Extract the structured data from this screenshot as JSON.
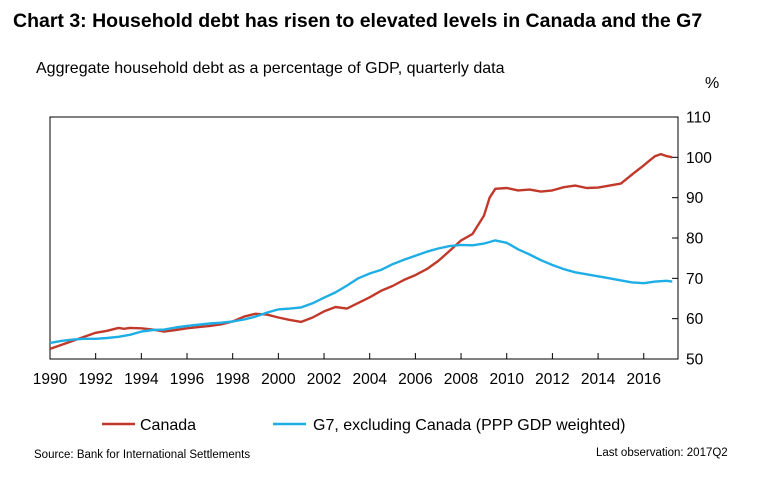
{
  "chart_data": {
    "type": "line",
    "title": "Chart 3: Household debt has risen to elevated levels in Canada and the G7",
    "subtitle": "Aggregate household debt as a percentage of GDP, quarterly data",
    "ylabel": "%",
    "ylim": [
      50,
      110
    ],
    "xlim": [
      1990,
      2017.5
    ],
    "y_ticks": [
      "50",
      "60",
      "70",
      "80",
      "90",
      "100",
      "110"
    ],
    "x_ticks": [
      "1990",
      "1992",
      "1994",
      "1996",
      "1998",
      "2000",
      "2002",
      "2004",
      "2006",
      "2008",
      "2010",
      "2012",
      "2014",
      "2016"
    ],
    "grid": false,
    "legend": "bottom",
    "series": [
      {
        "name": "Canada",
        "color": "#c0392b",
        "x": [
          1990,
          1990.5,
          1991,
          1991.5,
          1992,
          1992.5,
          1993,
          1993.25,
          1993.5,
          1994,
          1994.5,
          1995,
          1995.5,
          1996,
          1996.5,
          1997,
          1997.5,
          1998,
          1998.5,
          1999,
          1999.5,
          2000,
          2000.5,
          2001,
          2001.5,
          2002,
          2002.5,
          2003,
          2003.5,
          2004,
          2004.5,
          2005,
          2005.5,
          2006,
          2006.5,
          2007,
          2007.5,
          2008,
          2008.5,
          2009,
          2009.25,
          2009.5,
          2010,
          2010.5,
          2011,
          2011.5,
          2012,
          2012.5,
          2013,
          2013.5,
          2014,
          2014.5,
          2015,
          2015.5,
          2016,
          2016.25,
          2016.5,
          2016.75,
          2017,
          2017.25
        ],
        "values": [
          52.5,
          53.5,
          54.5,
          55.5,
          56.5,
          57.0,
          57.7,
          57.5,
          57.7,
          57.6,
          57.3,
          56.8,
          57.2,
          57.6,
          57.9,
          58.2,
          58.6,
          59.3,
          60.5,
          61.2,
          61.0,
          60.3,
          59.7,
          59.2,
          60.3,
          61.8,
          62.9,
          62.5,
          63.9,
          65.3,
          66.9,
          68.1,
          69.6,
          70.8,
          72.3,
          74.3,
          76.8,
          79.4,
          81.0,
          85.5,
          90.0,
          92.2,
          92.4,
          91.8,
          92.0,
          91.5,
          91.8,
          92.6,
          93.0,
          92.4,
          92.5,
          93.0,
          93.5,
          95.8,
          98.0,
          99.2,
          100.3,
          100.8,
          100.3,
          100.0
        ]
      },
      {
        "name": "G7, excluding Canada (PPP GDP weighted)",
        "color": "#1eaee6",
        "x": [
          1990,
          1990.5,
          1991,
          1991.5,
          1992,
          1992.5,
          1993,
          1993.5,
          1994,
          1994.5,
          1995,
          1995.5,
          1996,
          1996.5,
          1997,
          1997.5,
          1998,
          1998.5,
          1999,
          1999.5,
          2000,
          2000.5,
          2001,
          2001.5,
          2002,
          2002.5,
          2003,
          2003.5,
          2004,
          2004.5,
          2005,
          2005.5,
          2006,
          2006.5,
          2007,
          2007.5,
          2008,
          2008.5,
          2009,
          2009.5,
          2010,
          2010.5,
          2011,
          2011.5,
          2012,
          2012.5,
          2013,
          2013.5,
          2014,
          2014.5,
          2015,
          2015.5,
          2016,
          2016.5,
          2017,
          2017.25
        ],
        "values": [
          54.0,
          54.5,
          54.8,
          55.0,
          55.0,
          55.2,
          55.5,
          56.0,
          56.8,
          57.2,
          57.3,
          57.8,
          58.2,
          58.5,
          58.8,
          59.0,
          59.3,
          59.8,
          60.5,
          61.5,
          62.3,
          62.5,
          62.8,
          63.8,
          65.2,
          66.5,
          68.2,
          70.0,
          71.2,
          72.1,
          73.5,
          74.6,
          75.6,
          76.6,
          77.4,
          78.0,
          78.3,
          78.2,
          78.6,
          79.4,
          78.8,
          77.2,
          75.9,
          74.5,
          73.3,
          72.3,
          71.5,
          71.0,
          70.5,
          70.0,
          69.5,
          69.0,
          68.8,
          69.2,
          69.4,
          69.2
        ]
      }
    ],
    "source": "Source: Bank for International Settlements",
    "last_observation": "Last observation: 2017Q2"
  }
}
